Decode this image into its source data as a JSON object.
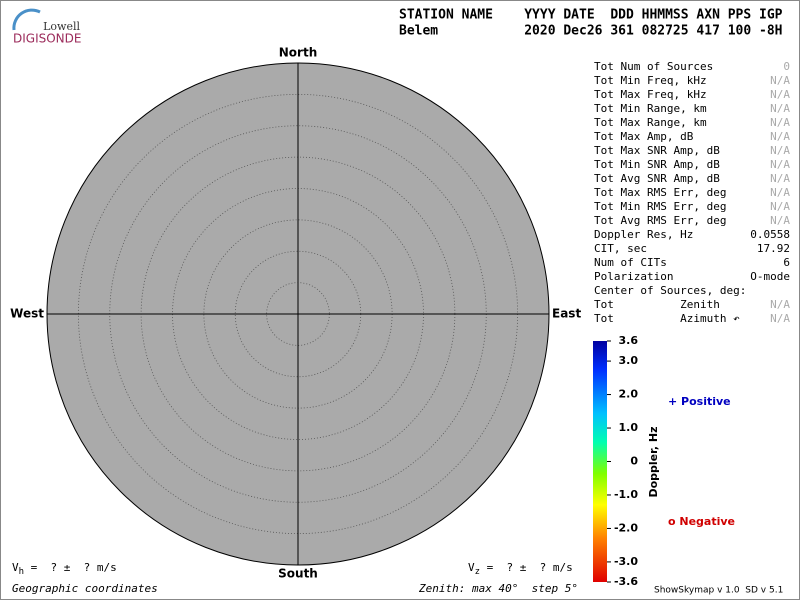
{
  "header": {
    "logo_top": "Lowell",
    "logo_bottom": "DIGISONDE",
    "line1": "STATION NAME    YYYY DATE  DDD HHMMSS AXN PPS IGP",
    "line2": "Belem           2020 Dec26 361 082725 417 100 -8H"
  },
  "skymap": {
    "north": "North",
    "south": "South",
    "west": "West",
    "east": "East"
  },
  "stats": [
    {
      "label": "Tot Num of Sources",
      "value": "0"
    },
    {
      "label": "Tot Min Freq, kHz",
      "value": "N/A"
    },
    {
      "label": "Tot Max Freq, kHz",
      "value": "N/A"
    },
    {
      "label": "Tot Min Range, km",
      "value": "N/A"
    },
    {
      "label": "Tot Max Range, km",
      "value": "N/A"
    },
    {
      "label": "Tot Max Amp, dB",
      "value": "N/A"
    },
    {
      "label": "Tot Max SNR Amp, dB",
      "value": "N/A"
    },
    {
      "label": "Tot Min SNR Amp, dB",
      "value": "N/A"
    },
    {
      "label": "Tot Avg SNR Amp, dB",
      "value": "N/A"
    },
    {
      "label": "Tot Max RMS Err, deg",
      "value": "N/A"
    },
    {
      "label": "Tot Min RMS Err, deg",
      "value": "N/A"
    },
    {
      "label": "Tot Avg RMS Err, deg",
      "value": "N/A"
    },
    {
      "label": "Doppler Res, Hz",
      "value": "0.0558"
    },
    {
      "label": "CIT, sec",
      "value": "17.92"
    },
    {
      "label": "Num of CITs",
      "value": "6"
    },
    {
      "label": "Polarization",
      "value": "O-mode"
    },
    {
      "label": "Center of Sources, deg:"
    },
    {
      "label": "Tot          Zenith",
      "value": "N/A"
    },
    {
      "label": "Tot          Azimuth ↶",
      "value": "N/A"
    }
  ],
  "colorbar": {
    "label": "Doppler, Hz",
    "lim": [
      -3.6,
      3.6
    ],
    "ticks": [
      3.6,
      {
        "value": 3.0,
        "label": "3.0"
      },
      {
        "value": 2.0,
        "label": "2.0"
      },
      {
        "value": 1.0,
        "label": "1.0"
      },
      0,
      {
        "value": -1.0,
        "label": "-1.0"
      },
      {
        "value": -2.0,
        "label": "-2.0"
      },
      {
        "value": -3.0,
        "label": "-3.0"
      },
      -3.6
    ]
  },
  "legend": {
    "positive": "+ Positive",
    "negative": "o Negative"
  },
  "footer": {
    "vh": {
      "symbol": "V",
      "subscript": "h",
      "text": " =  ? ±  ? m/s"
    },
    "vz": {
      "symbol": "V",
      "subscript": "z",
      "text": " =  ? ±  ? m/s"
    },
    "coordinates": "Geographic coordinates",
    "zenith": {
      "prefix": "Zenith: max ",
      "max": 40,
      "unit": "°",
      "step_prefix": "  step ",
      "step": 5,
      "step_unit": "°"
    },
    "version": "ShowSkymap v 1.0  SD v 5.1"
  }
}
